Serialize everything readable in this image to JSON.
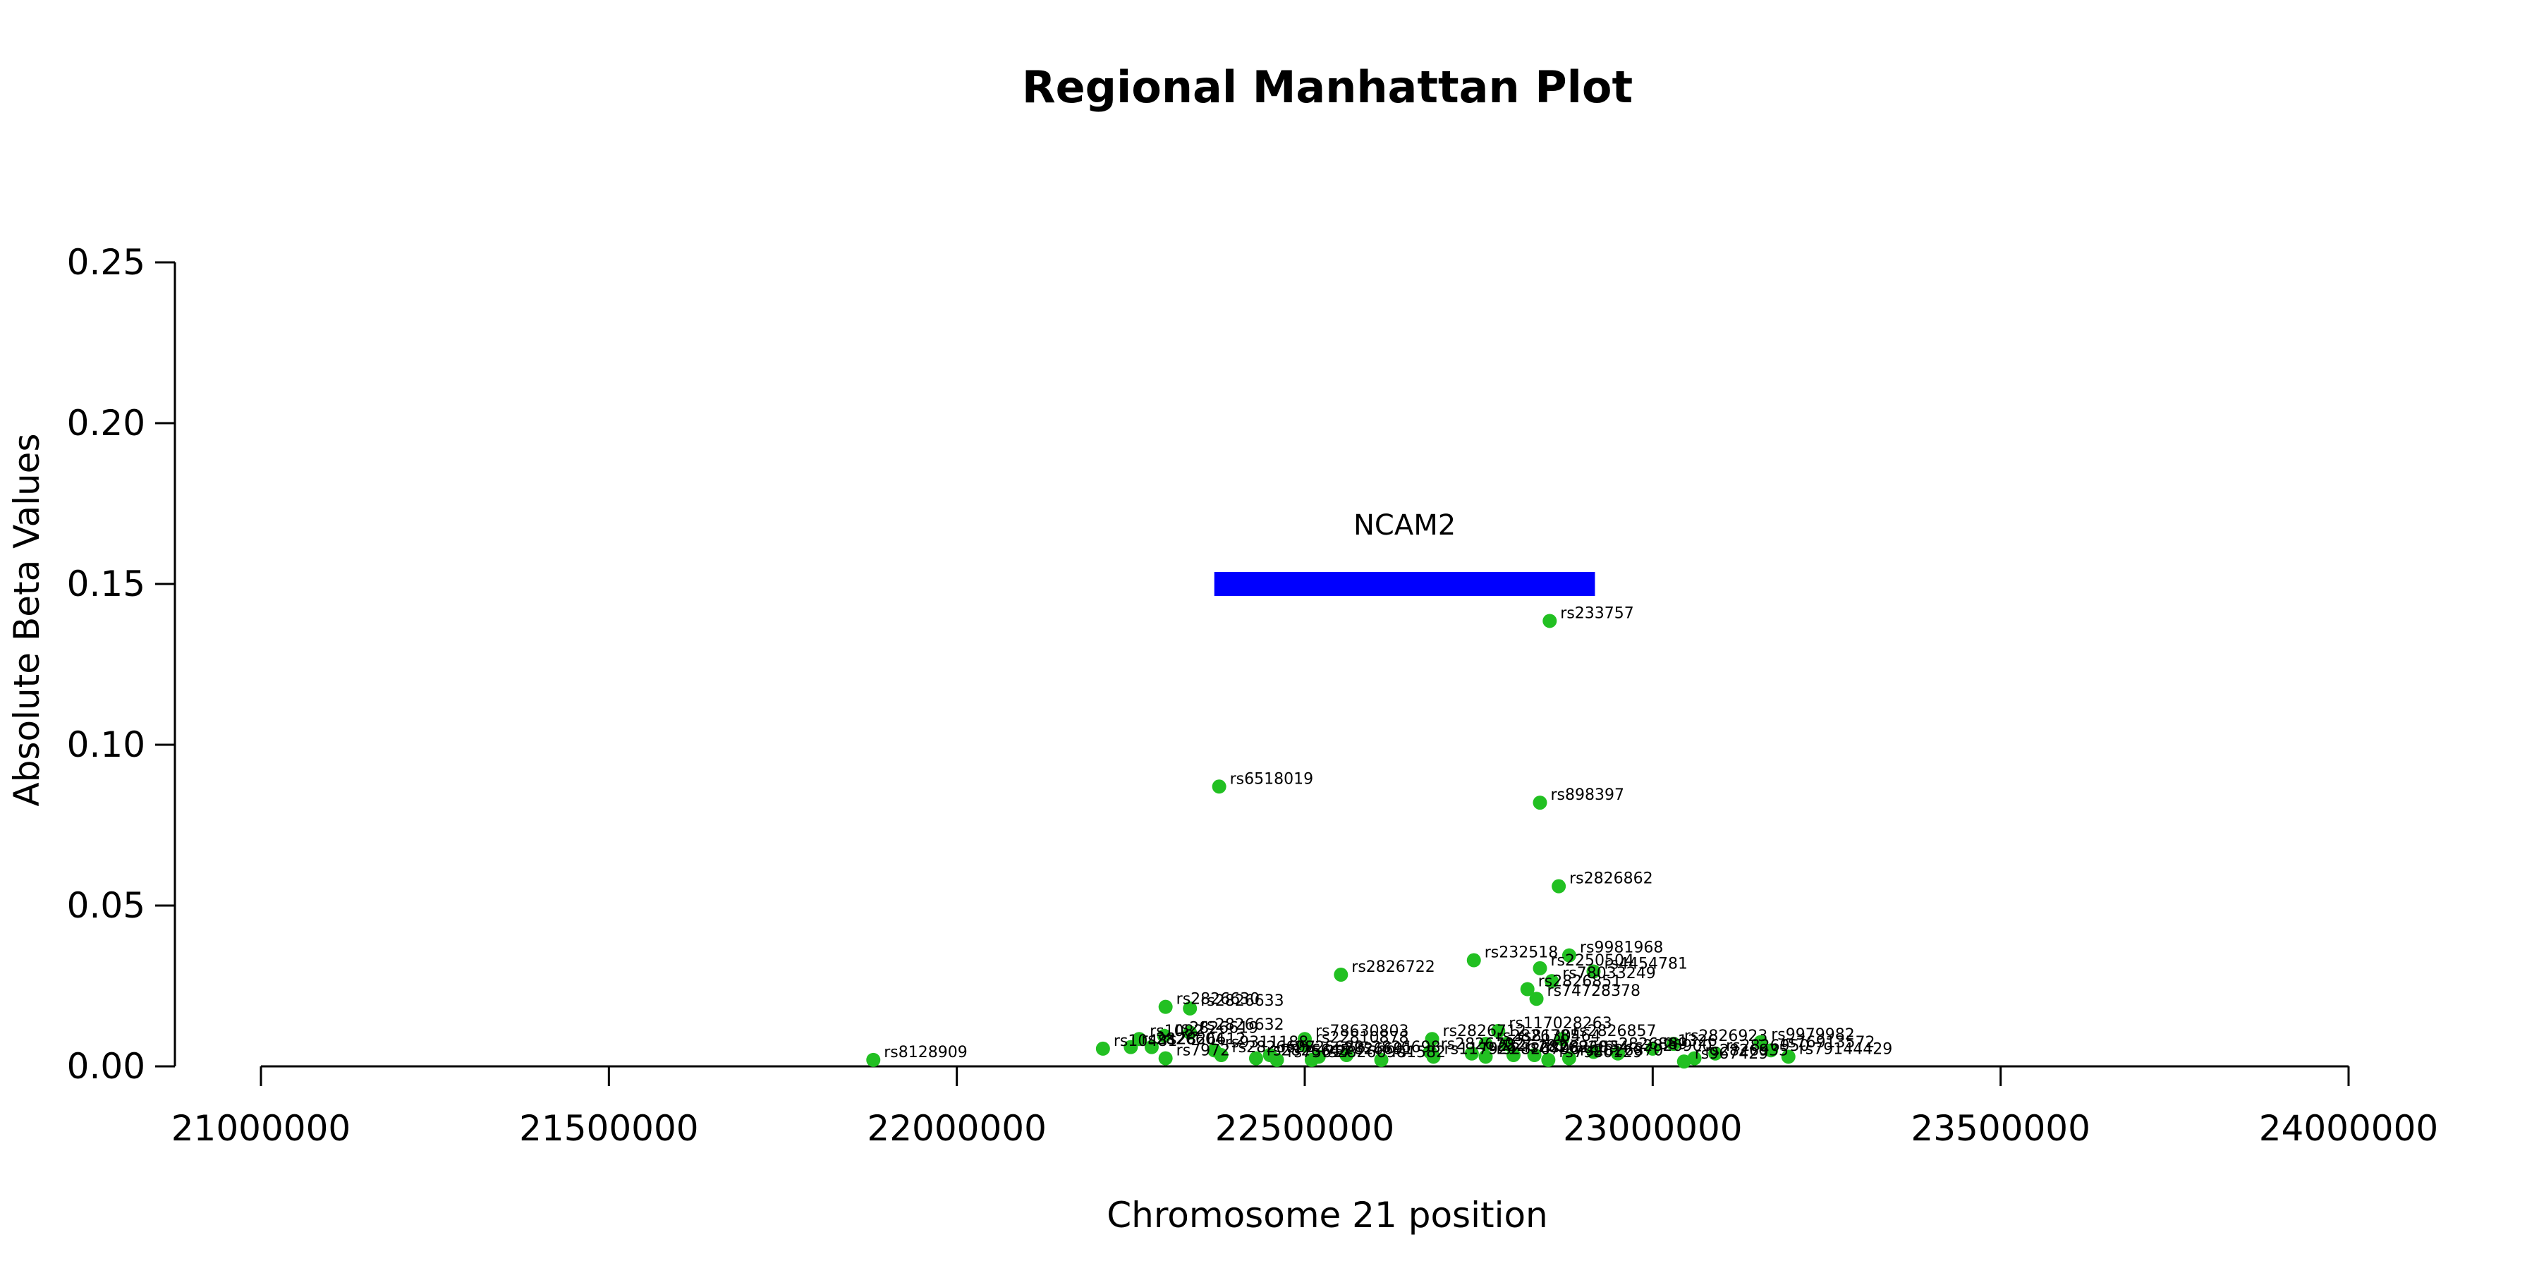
{
  "chart_data": {
    "type": "scatter",
    "title": "Regional Manhattan Plot",
    "xlabel": "Chromosome 21 position",
    "ylabel": "Absolute Beta Values",
    "xlim": [
      21000000,
      24000000
    ],
    "ylim": [
      0,
      0.25
    ],
    "xticks": [
      "21000000",
      "21500000",
      "22000000",
      "22500000",
      "23000000",
      "23500000",
      "24000000"
    ],
    "yticks": [
      "0.00",
      "0.05",
      "0.10",
      "0.15",
      "0.20",
      "0.25"
    ],
    "grid": false,
    "colors": {
      "points": "#22c022",
      "gene": "#0000ff"
    },
    "gene": {
      "name": "NCAM2",
      "start": 22370000,
      "end": 22917000,
      "y": 0.15
    },
    "points": [
      {
        "x": 22852000,
        "y": 0.1385,
        "label": "rs233757"
      },
      {
        "x": 22377000,
        "y": 0.087,
        "label": "rs6518019"
      },
      {
        "x": 22838000,
        "y": 0.082,
        "label": "rs898397"
      },
      {
        "x": 22865000,
        "y": 0.056,
        "label": "rs2826862"
      },
      {
        "x": 22743000,
        "y": 0.033,
        "label": "rs232518"
      },
      {
        "x": 22880000,
        "y": 0.0345,
        "label": "rs9981968"
      },
      {
        "x": 22838000,
        "y": 0.0305,
        "label": "rs2250504"
      },
      {
        "x": 22915000,
        "y": 0.0295,
        "label": "rs4454781"
      },
      {
        "x": 22552000,
        "y": 0.0285,
        "label": "rs2826722"
      },
      {
        "x": 22855000,
        "y": 0.0265,
        "label": "rs78033249"
      },
      {
        "x": 22820000,
        "y": 0.024,
        "label": "rs2826851"
      },
      {
        "x": 22833000,
        "y": 0.021,
        "label": "rs74728378"
      },
      {
        "x": 22300000,
        "y": 0.0185,
        "label": "rs2826630"
      },
      {
        "x": 22335000,
        "y": 0.018,
        "label": "rs2826633"
      },
      {
        "x": 22335000,
        "y": 0.0105,
        "label": "rs2826632"
      },
      {
        "x": 22298000,
        "y": 0.0095,
        "label": "rs2826619"
      },
      {
        "x": 22262000,
        "y": 0.0085,
        "label": "rs1082"
      },
      {
        "x": 22500000,
        "y": 0.0085,
        "label": "rs78630803"
      },
      {
        "x": 22778000,
        "y": 0.011,
        "label": "rs117028263"
      },
      {
        "x": 22683000,
        "y": 0.0085,
        "label": "rs2826712"
      },
      {
        "x": 22870000,
        "y": 0.0085,
        "label": "rs2826857"
      },
      {
        "x": 22760000,
        "y": 0.007,
        "label": "rs2826785"
      },
      {
        "x": 22790000,
        "y": 0.007,
        "label": "rs8130464"
      },
      {
        "x": 22500000,
        "y": 0.0065,
        "label": "rs22810878"
      },
      {
        "x": 22210000,
        "y": 0.0055,
        "label": "rs10481"
      },
      {
        "x": 22250000,
        "y": 0.006,
        "label": "rs2826604"
      },
      {
        "x": 22280000,
        "y": 0.006,
        "label": "rs2826612"
      },
      {
        "x": 22370000,
        "y": 0.005,
        "label": "rs9311188"
      },
      {
        "x": 23000000,
        "y": 0.0055,
        "label": "rs1326"
      },
      {
        "x": 23030000,
        "y": 0.007,
        "label": "rs2826923"
      },
      {
        "x": 23155000,
        "y": 0.0075,
        "label": "rs9979982"
      },
      {
        "x": 23170000,
        "y": 0.005,
        "label": "rs76913572"
      },
      {
        "x": 22680000,
        "y": 0.0045,
        "label": "rs2826702"
      },
      {
        "x": 22740000,
        "y": 0.004,
        "label": "rs2826781"
      },
      {
        "x": 22380000,
        "y": 0.0035,
        "label": "rs2826607"
      },
      {
        "x": 22430000,
        "y": 0.0025,
        "label": "rs2826645"
      },
      {
        "x": 22450000,
        "y": 0.0035,
        "label": "rs2826680"
      },
      {
        "x": 22520000,
        "y": 0.003,
        "label": "rs2826691"
      },
      {
        "x": 22560000,
        "y": 0.0035,
        "label": "rs2826698"
      },
      {
        "x": 22300000,
        "y": 0.0025,
        "label": "rs7972"
      },
      {
        "x": 22460000,
        "y": 0.002,
        "label": "rs75617"
      },
      {
        "x": 22510000,
        "y": 0.002,
        "label": "rs2826690"
      },
      {
        "x": 22610000,
        "y": 0.002,
        "label": "rs1582"
      },
      {
        "x": 22685000,
        "y": 0.003,
        "label": "rs117921"
      },
      {
        "x": 22760000,
        "y": 0.003,
        "label": "rs2826796"
      },
      {
        "x": 22800000,
        "y": 0.0035,
        "label": "rs2826820"
      },
      {
        "x": 22830000,
        "y": 0.0035,
        "label": "rs2826834"
      },
      {
        "x": 22880000,
        "y": 0.0025,
        "label": "rs2826870"
      },
      {
        "x": 22915000,
        "y": 0.0045,
        "label": "rs2826889"
      },
      {
        "x": 22950000,
        "y": 0.004,
        "label": "rs2826900"
      },
      {
        "x": 22850000,
        "y": 0.002,
        "label": "rs7980129"
      },
      {
        "x": 23060000,
        "y": 0.0025,
        "label": "rs2826935"
      },
      {
        "x": 23045000,
        "y": 0.0015,
        "label": "rs967429"
      },
      {
        "x": 23090000,
        "y": 0.004,
        "label": "rs2826950"
      },
      {
        "x": 23195000,
        "y": 0.003,
        "label": "rs79144429"
      },
      {
        "x": 21880000,
        "y": 0.002,
        "label": "rs8128909"
      }
    ]
  }
}
